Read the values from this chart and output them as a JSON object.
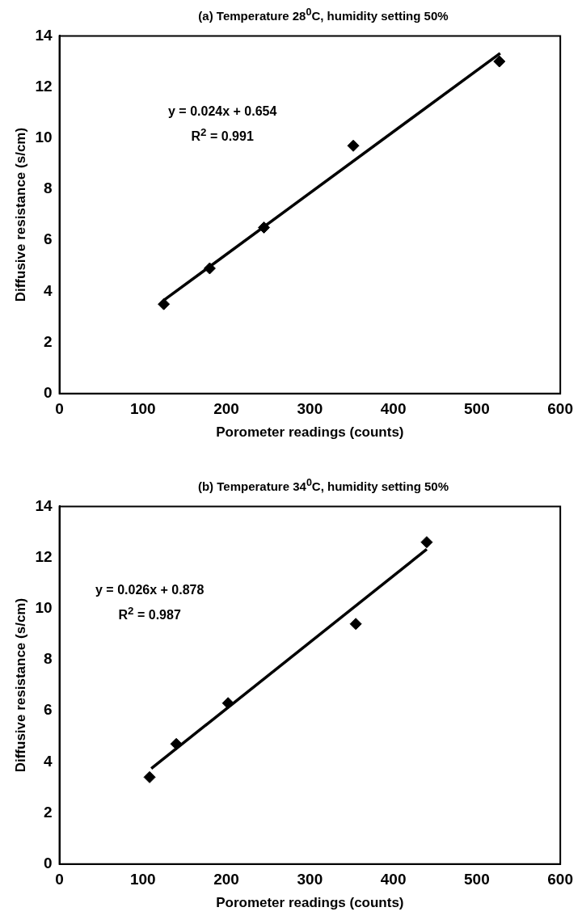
{
  "chart_data": [
    {
      "type": "scatter",
      "title": "(a) Temperature 28$^{0}$C,  humidity setting 50%",
      "xlabel": "Porometer readings (counts)",
      "ylabel": "Diffusive resistance (s/cm)",
      "xlim": [
        0,
        600
      ],
      "ylim": [
        0,
        14
      ],
      "xticks": [
        0,
        100,
        200,
        300,
        400,
        500,
        600
      ],
      "yticks": [
        0,
        2,
        4,
        6,
        8,
        10,
        12,
        14
      ],
      "marker": "diamond",
      "series": [
        {
          "color": "#000000",
          "x": [
            125,
            180,
            245,
            352,
            527
          ],
          "values": [
            3.5,
            4.9,
            6.5,
            9.7,
            13.0
          ]
        },
        {
          "type": "line",
          "color": "#000000",
          "marker": "none",
          "x": [
            125,
            528
          ],
          "values": [
            3.65,
            13.32
          ]
        }
      ],
      "annotations": [
        "y = 0.024x + 0.654",
        "R$^{2}$ = 0.991"
      ]
    },
    {
      "type": "scatter",
      "title": "(b) Temperature 34$^{0}$C,  humidity setting 50%",
      "xlabel": "Porometer readings (counts)",
      "ylabel": "Diffusive resistance (s/cm)",
      "xlim": [
        0,
        600
      ],
      "ylim": [
        0,
        14
      ],
      "xticks": [
        0,
        100,
        200,
        300,
        400,
        500,
        600
      ],
      "yticks": [
        0,
        2,
        4,
        6,
        8,
        10,
        12,
        14
      ],
      "marker": "diamond",
      "series": [
        {
          "color": "#000000",
          "x": [
            108,
            140,
            202,
            355,
            440
          ],
          "values": [
            3.4,
            4.7,
            6.3,
            9.4,
            12.6
          ]
        },
        {
          "type": "line",
          "color": "#000000",
          "marker": "none",
          "x": [
            110,
            440
          ],
          "values": [
            3.74,
            12.32
          ]
        }
      ],
      "annotations": [
        "y = 0.026x + 0.878",
        "R$^{2}$ = 0.987"
      ]
    }
  ]
}
